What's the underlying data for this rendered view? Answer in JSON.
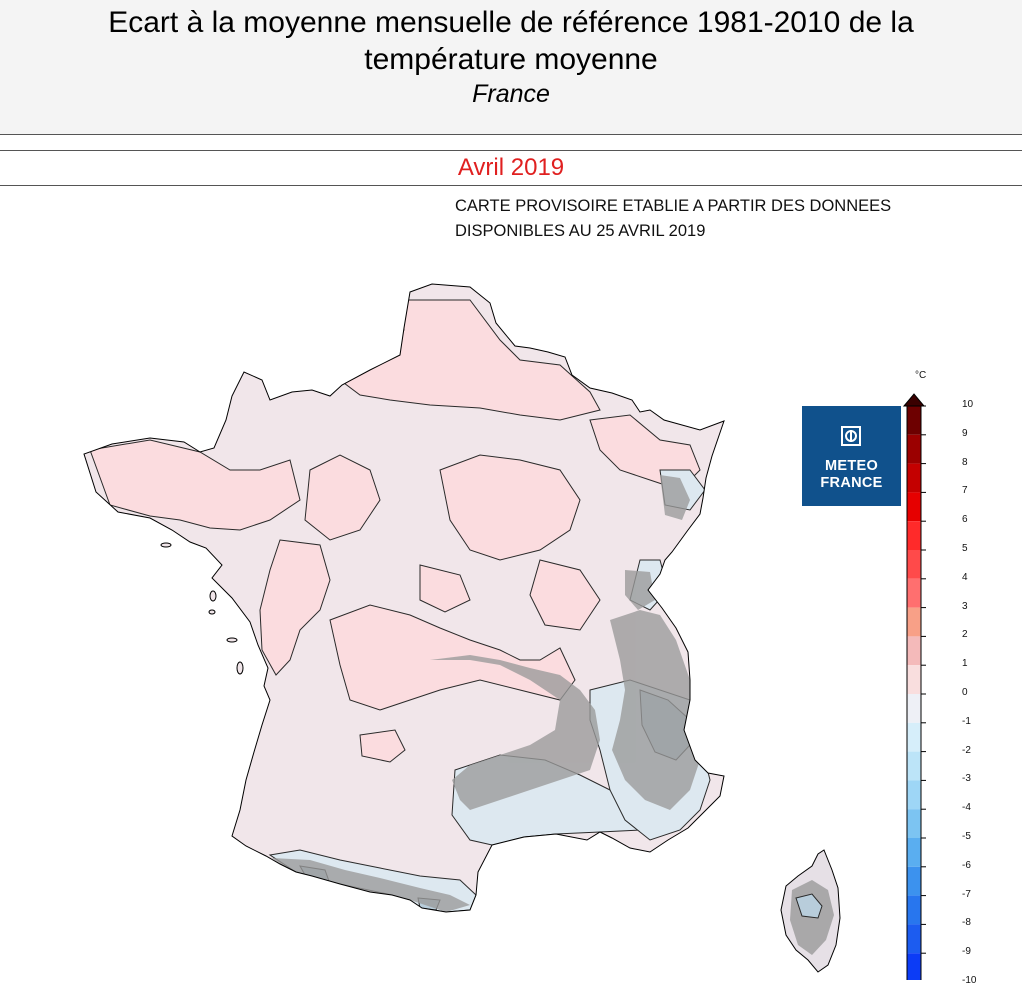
{
  "header": {
    "title_line1": "Ecart à la moyenne mensuelle de référence 1981-2010 de la",
    "title_line2": "température moyenne",
    "subtitle": "France"
  },
  "period": "Avril 2019",
  "note": {
    "line1": "CARTE PROVISOIRE ETABLIE A PARTIR DES DONNEES",
    "line2": "DISPONIBLES AU 25 AVRIL 2019"
  },
  "logo": {
    "line1": "METEO",
    "line2": "FRANCE"
  },
  "legend": {
    "unit": "°C",
    "ticks": [
      "10",
      "9",
      "8",
      "7",
      "6",
      "5",
      "4",
      "3",
      "2",
      "1",
      "0",
      "-1",
      "-2",
      "-3",
      "-4",
      "-5",
      "-6",
      "-7",
      "-8",
      "-9",
      "-10"
    ],
    "colors": [
      "#6d0000",
      "#9b0000",
      "#c40000",
      "#e60000",
      "#ff2a2a",
      "#ff4a4a",
      "#ff6f6f",
      "#f8a087",
      "#f4baba",
      "#f9dede",
      "#eef0f6",
      "#d6eefa",
      "#bce4f8",
      "#9ed6f6",
      "#7cc4f2",
      "#5aaef0",
      "#3c92ee",
      "#2876ee",
      "#1c5cf0",
      "#0c3cf6"
    ],
    "map_fill_colors": {
      "positive_0_1": "#f0e8ec",
      "positive_1_2": "#fbdfe2",
      "positive_2_3": "#f8c8cc",
      "negative_0_1": "#e2ebf2",
      "negative_1_2": "#c3d7e3",
      "relief_mask": "#9a9a9a"
    }
  }
}
